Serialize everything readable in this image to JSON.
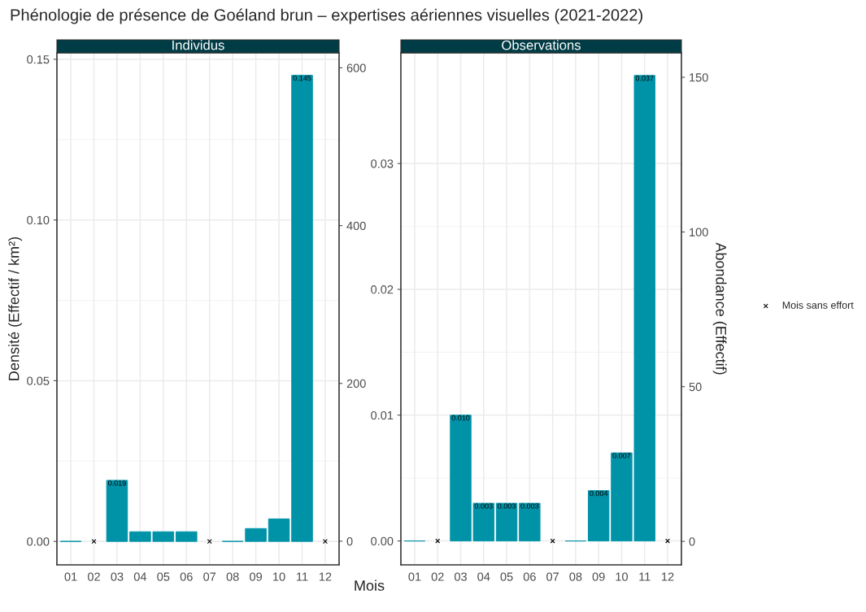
{
  "chart_data": [
    {
      "type": "bar",
      "title": "Phénologie de présence de Goéland brun – expertises aériennes visuelles (2021-2022)",
      "subtitle": "Individus",
      "xlabel": "Mois",
      "ylabel": "Densité (Effectif / km²)",
      "categories": [
        "01",
        "02",
        "03",
        "04",
        "05",
        "06",
        "07",
        "08",
        "09",
        "10",
        "11",
        "12"
      ],
      "series": [
        {
          "color": "#0093a8",
          "values": [
            0,
            null,
            0.019,
            0.003,
            0.003,
            0.003,
            null,
            0,
            0.004,
            0.007,
            0.145,
            null
          ],
          "value_labels": [
            null,
            null,
            "0.019",
            null,
            null,
            null,
            null,
            null,
            null,
            null,
            "0.145",
            null
          ]
        },
        {
          "type": "scatter",
          "color": "#000000",
          "marker": "cross",
          "values": [
            null,
            0,
            null,
            null,
            null,
            null,
            0,
            null,
            null,
            null,
            null,
            0
          ]
        }
      ],
      "ylim": [
        -0.0073,
        0.152
      ],
      "yticks": [
        {
          "value": 0,
          "label": "0.00"
        },
        {
          "value": 0.05,
          "label": "0.05"
        },
        {
          "value": 0.1,
          "label": "0.10"
        },
        {
          "value": 0.15,
          "label": "0.15"
        }
      ],
      "y2lim": [
        -30,
        619
      ],
      "y2ticks": [
        0,
        200,
        400,
        600
      ],
      "grid": true,
      "legend": false
    },
    {
      "type": "bar",
      "subtitle": "Observations",
      "y2label": "Abondance (Effectif)",
      "categories": [
        "01",
        "02",
        "03",
        "04",
        "05",
        "06",
        "07",
        "08",
        "09",
        "10",
        "11",
        "12"
      ],
      "series": [
        {
          "color": "#0093a8",
          "values": [
            0,
            null,
            0.01,
            0.003,
            0.003,
            0.003,
            null,
            0,
            0.004,
            0.007,
            0.037,
            null
          ],
          "value_labels": [
            null,
            null,
            "0.010",
            "0.003",
            "0.003",
            "0.003",
            null,
            null,
            "0.004",
            "0.007",
            "0.037",
            null
          ]
        },
        {
          "type": "scatter",
          "name": "Mois sans effort",
          "color": "#000000",
          "marker": "cross",
          "values": [
            null,
            0,
            null,
            null,
            null,
            null,
            0,
            null,
            null,
            null,
            null,
            0
          ]
        }
      ],
      "ylim": [
        -0.0019,
        0.0388
      ],
      "yticks": [
        {
          "value": 0,
          "label": "0.00"
        },
        {
          "value": 0.01,
          "label": "0.01"
        },
        {
          "value": 0.02,
          "label": "0.02"
        },
        {
          "value": 0.03,
          "label": "0.03"
        }
      ],
      "y2lim": [
        -7.6,
        157.9
      ],
      "y2ticks": [
        0,
        50,
        100,
        150
      ],
      "grid": true,
      "legend": "right"
    }
  ]
}
